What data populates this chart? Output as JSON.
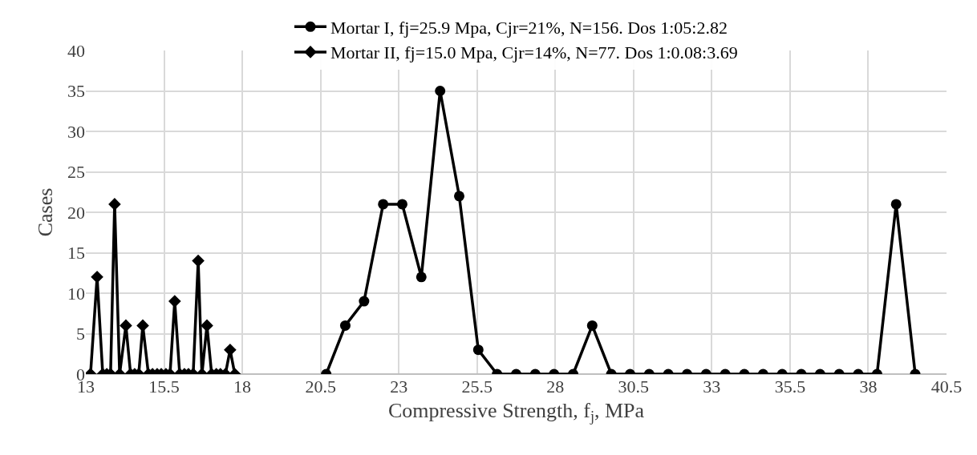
{
  "chart_data": {
    "type": "line",
    "xlabel": "Compressive Strength, f$_{j}$, MPa",
    "ylabel": "Cases",
    "xlim": [
      13,
      40.5
    ],
    "xticks": [
      13,
      15.5,
      18,
      20.5,
      23,
      25.5,
      28,
      30.5,
      33,
      35.5,
      38,
      40.5
    ],
    "ylim": [
      0,
      40
    ],
    "yticks": [
      0,
      5,
      10,
      15,
      20,
      25,
      30,
      35,
      40
    ],
    "grid": true,
    "legend": "top",
    "series": [
      {
        "name": "Mortar I, fj=25.9 Mpa, Cjr=21%, N=156. Dos 1:05:2.82",
        "color": "#000000",
        "marker": "circle",
        "line_style": "solid",
        "x": [
          20.68,
          21.29,
          21.89,
          22.5,
          23.11,
          23.72,
          24.32,
          24.93,
          25.54,
          26.14,
          26.75,
          27.36,
          27.96,
          28.57,
          29.18,
          29.79,
          30.39,
          31.0,
          31.61,
          32.21,
          32.82,
          33.43,
          34.04,
          34.64,
          35.25,
          35.86,
          36.46,
          37.07,
          37.68,
          38.28,
          38.89,
          39.5
        ],
        "values": [
          0,
          6,
          9,
          21,
          21,
          12,
          35,
          22,
          3,
          0,
          0,
          0,
          0,
          0,
          6,
          0,
          0,
          0,
          0,
          0,
          0,
          0,
          0,
          0,
          0,
          0,
          0,
          0,
          0,
          0,
          21,
          0
        ]
      },
      {
        "name": "Mortar II, fj=15.0 Mpa, Cjr=14%, N=77. Dos 1:0.08:3.69",
        "color": "#000000",
        "marker": "diamond",
        "line_style": "solid",
        "x": [
          13.15,
          13.36,
          13.54,
          13.67,
          13.79,
          13.92,
          14.08,
          14.28,
          14.43,
          14.56,
          14.69,
          14.82,
          15.0,
          15.13,
          15.28,
          15.41,
          15.56,
          15.69,
          15.84,
          16.0,
          16.15,
          16.28,
          16.43,
          16.59,
          16.71,
          16.87,
          17.02,
          17.17,
          17.3,
          17.46,
          17.61,
          17.76
        ],
        "values": [
          0,
          12,
          0,
          0,
          0,
          21,
          0,
          6,
          0,
          0,
          0,
          6,
          0,
          0,
          0,
          0,
          0,
          0,
          9,
          0,
          0,
          0,
          0,
          14,
          0,
          6,
          0,
          0,
          0,
          0,
          3,
          0
        ]
      }
    ]
  }
}
